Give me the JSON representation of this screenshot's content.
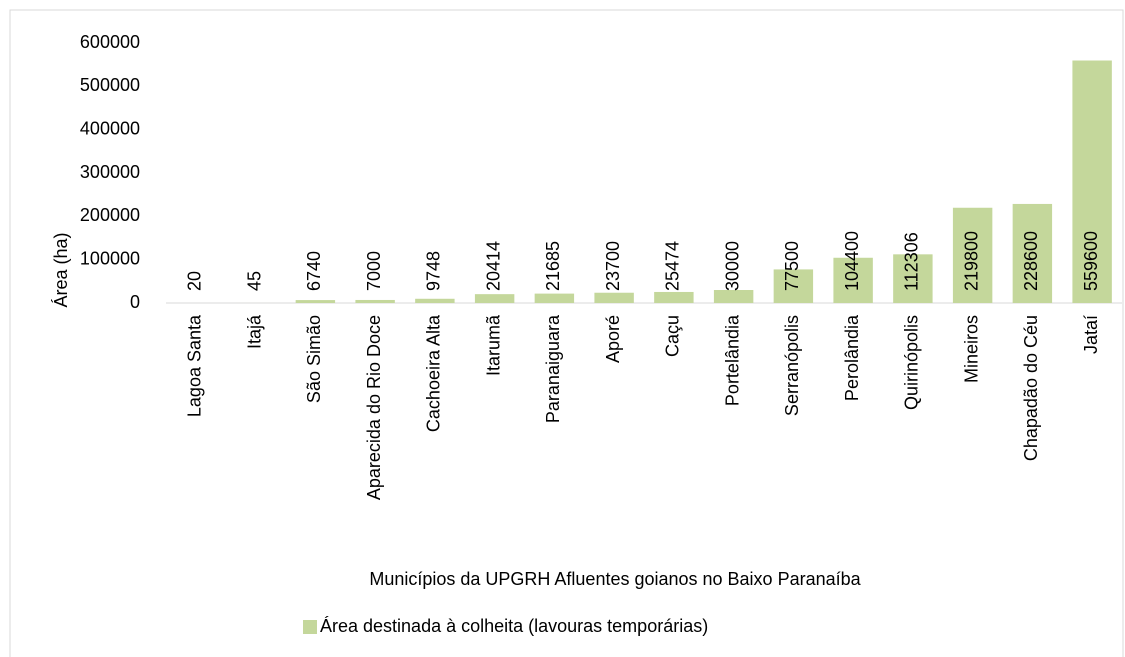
{
  "chart_data": {
    "type": "bar",
    "x_label": "Municípios da UPGRH Afluentes goianos no Baixo Paranaíba",
    "y_label": "Área (ha)",
    "categories": [
      "Lagoa Santa",
      "Itajá",
      "São Simão",
      "Aparecida do Rio Doce",
      "Cachoeira Alta",
      "Itarumã",
      "Paranaiguara",
      "Aporé",
      "Caçu",
      "Portelândia",
      "Serranópolis",
      "Perolândia",
      "Quirinópolis",
      "Mineiros",
      "Chapadão do Céu",
      "Jataí"
    ],
    "series": [
      {
        "name": "Área destinada à colheita (lavouras temporárias)",
        "color": "#c4d79b",
        "values": [
          20,
          45,
          6740,
          7000,
          9748,
          20414,
          21685,
          23700,
          25474,
          30000,
          77500,
          104400,
          112306,
          219800,
          228600,
          559600
        ]
      }
    ],
    "ylim": [
      0,
      600000
    ],
    "yticks": [
      0,
      100000,
      200000,
      300000,
      400000,
      500000,
      600000
    ],
    "grid": false,
    "legend": "bottom"
  }
}
